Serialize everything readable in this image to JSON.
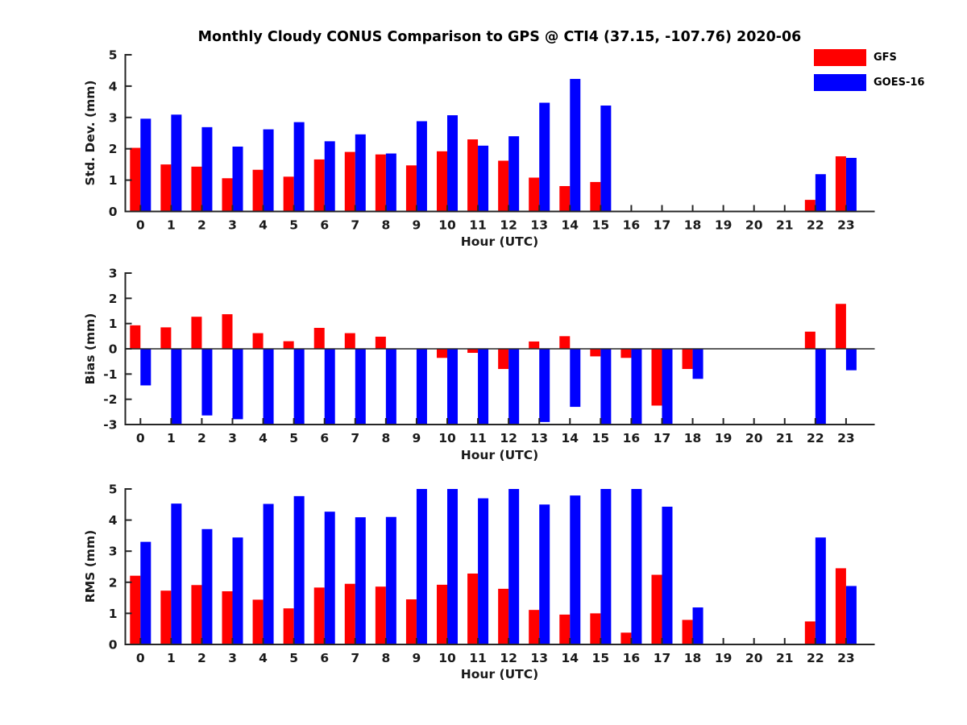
{
  "title": "Monthly Cloudy CONUS Comparison to GPS @ CTI4 (37.15, -107.76) 2020-06",
  "legend": {
    "items": [
      {
        "label": "GFS",
        "color": "#ff0000"
      },
      {
        "label": "GOES-16",
        "color": "#0000ff"
      }
    ]
  },
  "xlabel": "Hour (UTC)",
  "hours": [
    0,
    1,
    2,
    3,
    4,
    5,
    6,
    7,
    8,
    9,
    10,
    11,
    12,
    13,
    14,
    15,
    16,
    17,
    18,
    19,
    20,
    21,
    22,
    23
  ],
  "chart_data": [
    {
      "type": "bar",
      "title": "Monthly Cloudy CONUS Comparison to GPS @ CTI4 (37.15, -107.76) 2020-06",
      "xlabel": "Hour (UTC)",
      "ylabel": "Std. Dev. (mm)",
      "ylim": [
        0,
        5
      ],
      "yticks": [
        0,
        1,
        2,
        3,
        4,
        5
      ],
      "grid": false,
      "legend_position": "upper-right-outside",
      "categories": [
        0,
        1,
        2,
        3,
        4,
        5,
        6,
        7,
        8,
        9,
        10,
        11,
        12,
        13,
        14,
        15,
        16,
        17,
        18,
        19,
        20,
        21,
        22,
        23
      ],
      "series": [
        {
          "name": "GFS",
          "color": "#ff0000",
          "values": [
            2.03,
            1.5,
            1.43,
            1.06,
            1.33,
            1.11,
            1.66,
            1.9,
            1.82,
            1.47,
            1.92,
            2.3,
            1.62,
            1.08,
            0.81,
            0.94,
            0,
            0,
            0,
            0,
            0,
            0,
            0.37,
            1.76
          ]
        },
        {
          "name": "GOES-16",
          "color": "#0000ff",
          "values": [
            2.96,
            3.09,
            2.69,
            2.07,
            2.62,
            2.85,
            2.24,
            2.46,
            1.85,
            2.88,
            3.07,
            2.1,
            2.4,
            3.47,
            4.23,
            3.38,
            0,
            0,
            0,
            0,
            0,
            0,
            1.19,
            1.71
          ]
        }
      ]
    },
    {
      "type": "bar",
      "xlabel": "Hour (UTC)",
      "ylabel": "Bias (mm)",
      "ylim": [
        -3,
        3
      ],
      "yticks": [
        -3,
        -2,
        -1,
        0,
        1,
        2,
        3
      ],
      "zero_line": true,
      "grid": false,
      "categories": [
        0,
        1,
        2,
        3,
        4,
        5,
        6,
        7,
        8,
        9,
        10,
        11,
        12,
        13,
        14,
        15,
        16,
        17,
        18,
        19,
        20,
        21,
        22,
        23
      ],
      "series": [
        {
          "name": "GFS",
          "color": "#ff0000",
          "values": [
            0.93,
            0.85,
            1.27,
            1.37,
            0.62,
            0.3,
            0.83,
            0.62,
            0.48,
            0,
            -0.36,
            -0.16,
            -0.8,
            0.29,
            0.5,
            -0.3,
            -0.36,
            -2.25,
            -0.8,
            0,
            0,
            0,
            0.68,
            1.78
          ]
        },
        {
          "name": "GOES-16",
          "color": "#0000ff",
          "values": [
            -1.45,
            -3,
            -2.64,
            -2.79,
            -3,
            -3,
            -3,
            -3,
            -3,
            -3,
            -3,
            -3,
            -3,
            -2.9,
            -2.3,
            -3,
            -3,
            -3,
            -1.19,
            0,
            0,
            0,
            -3,
            -0.85
          ]
        }
      ]
    },
    {
      "type": "bar",
      "xlabel": "Hour (UTC)",
      "ylabel": "RMS (mm)",
      "ylim": [
        0,
        5
      ],
      "yticks": [
        0,
        1,
        2,
        3,
        4,
        5
      ],
      "grid": false,
      "categories": [
        0,
        1,
        2,
        3,
        4,
        5,
        6,
        7,
        8,
        9,
        10,
        11,
        12,
        13,
        14,
        15,
        16,
        17,
        18,
        19,
        20,
        21,
        22,
        23
      ],
      "series": [
        {
          "name": "GFS",
          "color": "#ff0000",
          "values": [
            2.21,
            1.73,
            1.91,
            1.71,
            1.44,
            1.16,
            1.83,
            1.95,
            1.86,
            1.45,
            1.92,
            2.28,
            1.79,
            1.11,
            0.96,
            1.0,
            0.38,
            2.24,
            0.79,
            0,
            0,
            0,
            0.74,
            2.45
          ]
        },
        {
          "name": "GOES-16",
          "color": "#0000ff",
          "values": [
            3.3,
            4.53,
            3.71,
            3.44,
            4.52,
            4.77,
            4.27,
            4.09,
            4.1,
            5.0,
            5.0,
            4.7,
            5.0,
            4.5,
            4.79,
            5.0,
            5.0,
            4.43,
            1.19,
            0,
            0,
            0,
            3.44,
            1.88
          ]
        }
      ]
    }
  ]
}
